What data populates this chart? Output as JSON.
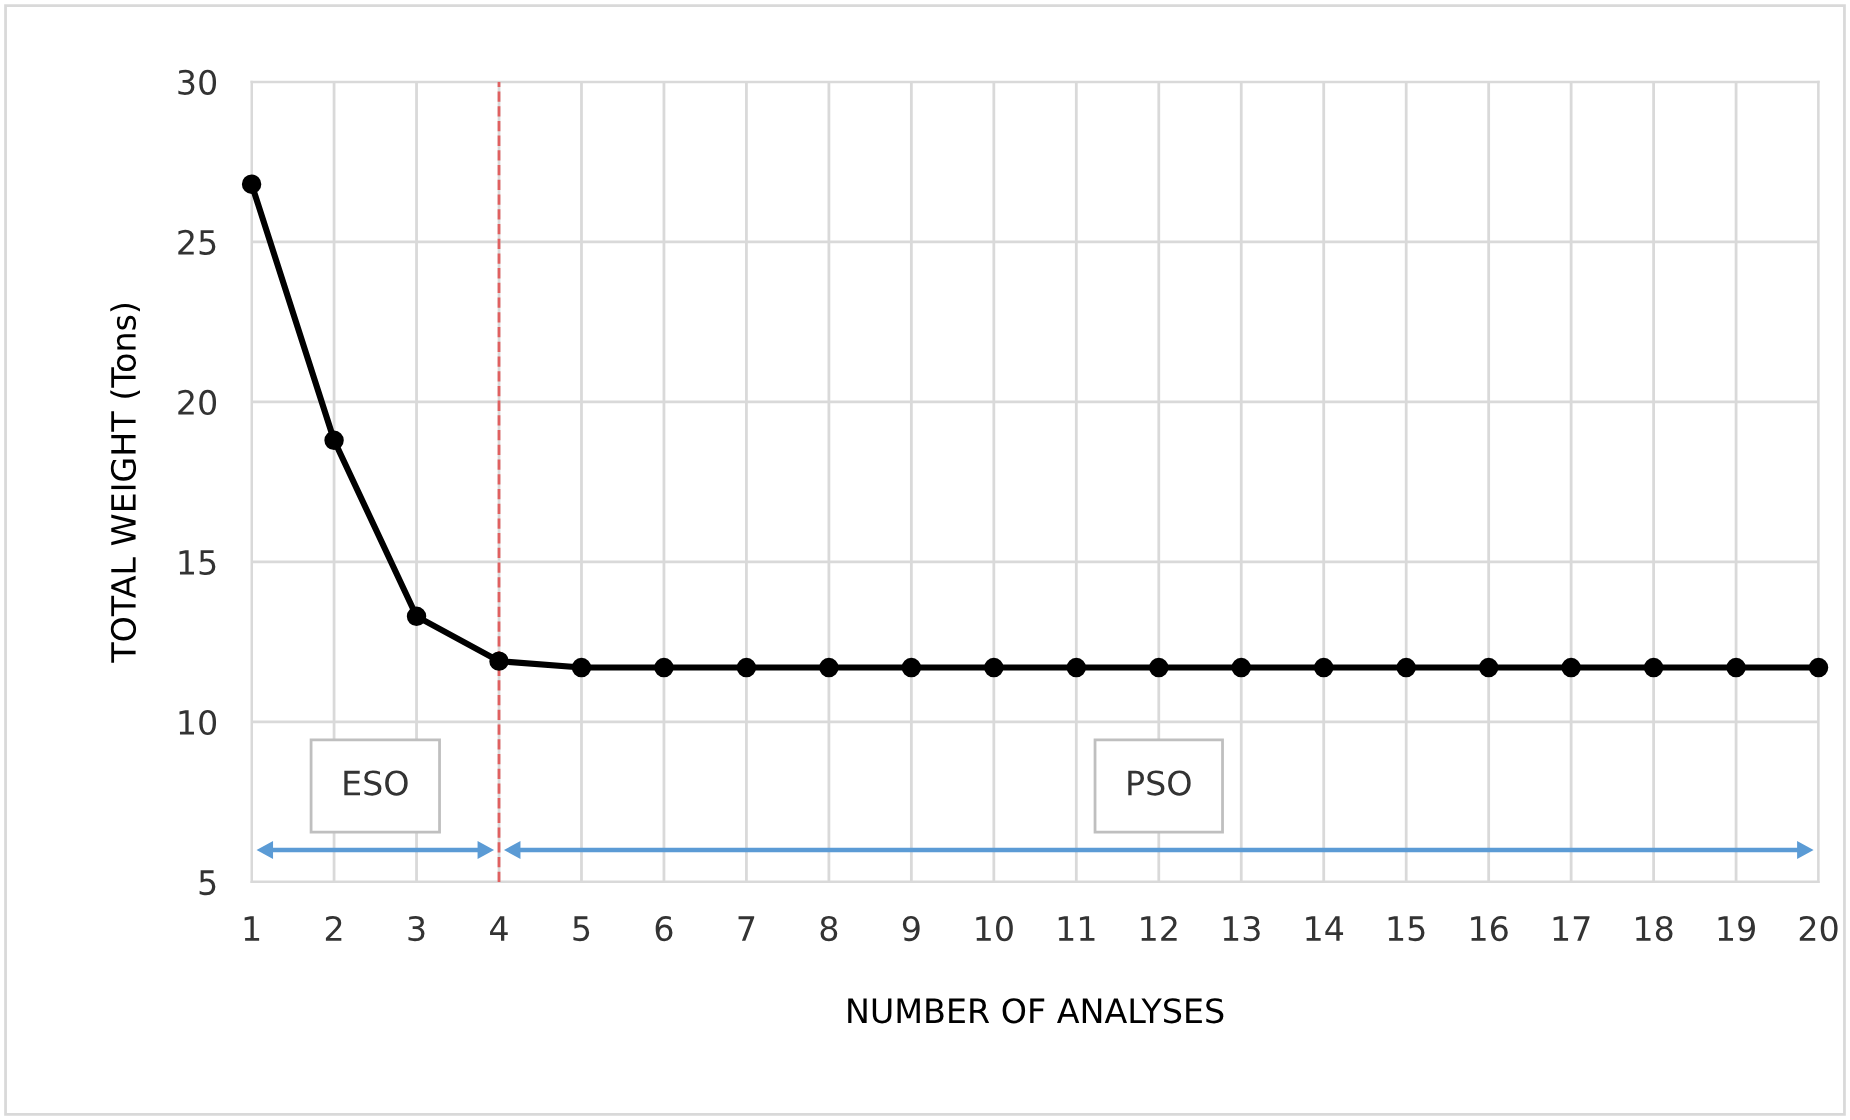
{
  "chart_data": {
    "type": "line",
    "xlabel": "NUMBER OF ANALYSES",
    "ylabel": "TOTAL WEIGHT (Tons)",
    "x": [
      1,
      2,
      3,
      4,
      5,
      6,
      7,
      8,
      9,
      10,
      11,
      12,
      13,
      14,
      15,
      16,
      17,
      18,
      19,
      20
    ],
    "series": [
      {
        "color": "#000000",
        "values": [
          26.8,
          18.8,
          13.3,
          11.9,
          11.7,
          11.7,
          11.7,
          11.7,
          11.7,
          11.7,
          11.7,
          11.7,
          11.7,
          11.7,
          11.7,
          11.7,
          11.7,
          11.7,
          11.7,
          11.7
        ]
      }
    ],
    "xlim": [
      1,
      20
    ],
    "xticks": [
      1,
      2,
      3,
      4,
      5,
      6,
      7,
      8,
      9,
      10,
      11,
      12,
      13,
      14,
      15,
      16,
      17,
      18,
      19,
      20
    ],
    "ylim": [
      5,
      30
    ],
    "yticks": [
      5,
      10,
      15,
      20,
      25,
      30
    ],
    "grid": true,
    "marker": "circle",
    "line_style": "solid",
    "ref_lines": [
      {
        "axis": "x",
        "value": 4,
        "color": "#e06060",
        "line_style": "dashed"
      }
    ],
    "annotations": [
      "ESO",
      "PSO"
    ]
  }
}
